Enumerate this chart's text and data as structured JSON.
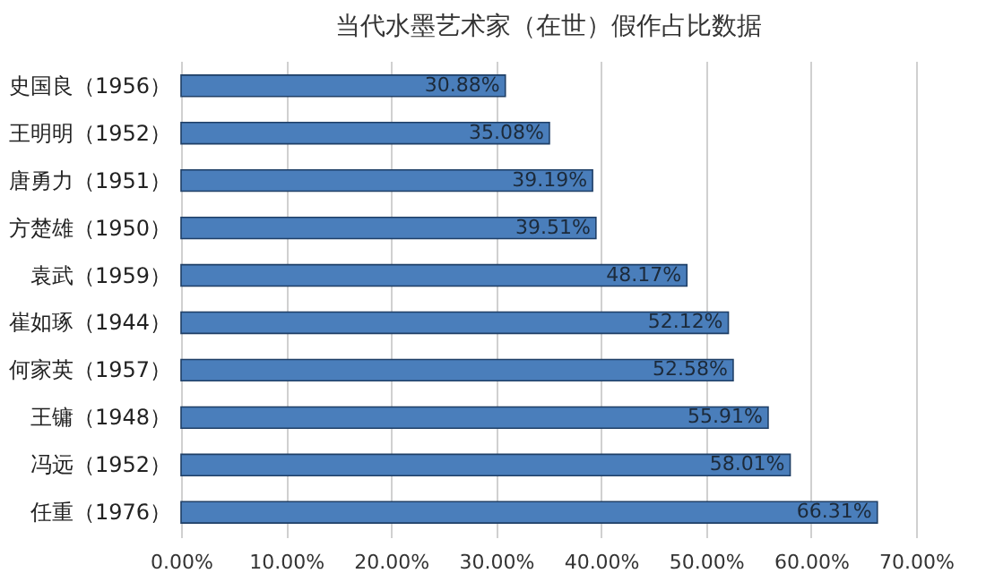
{
  "chart_data": {
    "type": "bar",
    "orientation": "horizontal",
    "title": "当代水墨艺术家（在世）假作占比数据",
    "categories": [
      "史国良（1956）",
      "王明明（1952）",
      "唐勇力（1951）",
      "方楚雄（1950）",
      "袁武（1959）",
      "崔如琢（1944）",
      "何家英（1957）",
      "王镛（1948）",
      "冯远（1952）",
      "任重（1976）"
    ],
    "values": [
      30.88,
      35.08,
      39.19,
      39.51,
      48.17,
      52.12,
      52.58,
      55.91,
      58.01,
      66.31
    ],
    "value_labels": [
      "30.88%",
      "35.08%",
      "39.19%",
      "39.51%",
      "48.17%",
      "52.12%",
      "52.58%",
      "55.91%",
      "58.01%",
      "66.31%"
    ],
    "color": "#4a7ebb",
    "xlim": [
      0,
      70
    ],
    "xticks": [
      {
        "value": 0,
        "label": "0.00%"
      },
      {
        "value": 10,
        "label": "10.00%"
      },
      {
        "value": 20,
        "label": "20.00%"
      },
      {
        "value": 30,
        "label": "30.00%"
      },
      {
        "value": 40,
        "label": "40.00%"
      },
      {
        "value": 50,
        "label": "50.00%"
      },
      {
        "value": 60,
        "label": "60.00%"
      },
      {
        "value": 70,
        "label": "70.00%"
      }
    ],
    "grid": "x"
  }
}
